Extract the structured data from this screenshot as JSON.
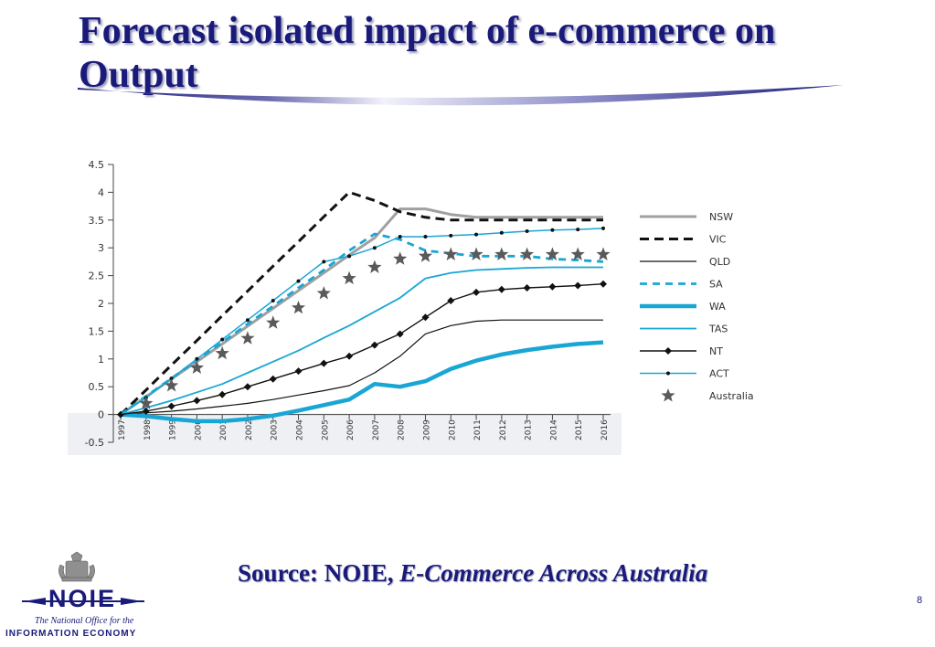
{
  "slide": {
    "title": "Forecast isolated impact of e-commerce on Output",
    "source_prefix": "Source: NOIE, ",
    "source_title": "E-Commerce Across Australia",
    "page_number": "8"
  },
  "logo": {
    "word": "NOIE",
    "tagline": "The National Office for the",
    "tagline2": "INFORMATION ECONOMY",
    "emblem_icon": "coat-of-arms-icon"
  },
  "colors": {
    "title": "#1a1a7a",
    "cyan": "#1aa6d4",
    "gray": "#a0a0a0"
  },
  "chart_data": {
    "type": "line",
    "title": "",
    "xlabel": "",
    "ylabel": "",
    "ylim": [
      -0.5,
      4.5
    ],
    "yticks": [
      "-0.5",
      "0",
      "0.5",
      "1",
      "1.5",
      "2",
      "2.5",
      "3",
      "3.5",
      "4",
      "4.5"
    ],
    "x": [
      "1997",
      "1998",
      "1999",
      "2000",
      "2001",
      "2002",
      "2003",
      "2004",
      "2005",
      "2006",
      "2007",
      "2008",
      "2009",
      "2010",
      "2011",
      "2012",
      "2013",
      "2014",
      "2015",
      "2016"
    ],
    "legend_position": "right",
    "series": [
      {
        "name": "NSW",
        "style": "gray-solid-thick",
        "values": [
          0,
          0.32,
          0.64,
          0.95,
          1.27,
          1.59,
          1.91,
          2.23,
          2.55,
          2.87,
          3.18,
          3.7,
          3.7,
          3.6,
          3.55,
          3.55,
          3.55,
          3.55,
          3.55,
          3.55
        ]
      },
      {
        "name": "VIC",
        "style": "black-dashed",
        "values": [
          0,
          0.44,
          0.89,
          1.33,
          1.78,
          2.22,
          2.67,
          3.11,
          3.56,
          4.0,
          3.85,
          3.65,
          3.55,
          3.5,
          3.5,
          3.5,
          3.5,
          3.5,
          3.5,
          3.5
        ]
      },
      {
        "name": "QLD",
        "style": "black-thin",
        "values": [
          0,
          0.03,
          0.06,
          0.1,
          0.15,
          0.2,
          0.27,
          0.35,
          0.43,
          0.52,
          0.75,
          1.05,
          1.45,
          1.6,
          1.68,
          1.7,
          1.7,
          1.7,
          1.7,
          1.7
        ]
      },
      {
        "name": "SA",
        "style": "cyan-dashed",
        "values": [
          0,
          0.33,
          0.65,
          0.98,
          1.3,
          1.63,
          1.95,
          2.28,
          2.6,
          2.95,
          3.25,
          3.15,
          2.95,
          2.9,
          2.85,
          2.85,
          2.85,
          2.8,
          2.78,
          2.75
        ]
      },
      {
        "name": "WA",
        "style": "cyan-thick",
        "values": [
          0,
          -0.03,
          -0.08,
          -0.12,
          -0.12,
          -0.08,
          -0.02,
          0.07,
          0.17,
          0.27,
          0.55,
          0.5,
          0.6,
          0.82,
          0.97,
          1.08,
          1.16,
          1.22,
          1.27,
          1.3
        ]
      },
      {
        "name": "TAS",
        "style": "cyan-thin",
        "values": [
          0,
          0.12,
          0.25,
          0.4,
          0.55,
          0.75,
          0.95,
          1.15,
          1.38,
          1.6,
          1.85,
          2.1,
          2.45,
          2.55,
          2.6,
          2.62,
          2.64,
          2.65,
          2.65,
          2.65
        ]
      },
      {
        "name": "NT",
        "style": "black-diamond",
        "values": [
          0,
          0.06,
          0.15,
          0.25,
          0.36,
          0.5,
          0.64,
          0.78,
          0.92,
          1.05,
          1.25,
          1.45,
          1.75,
          2.05,
          2.2,
          2.25,
          2.28,
          2.3,
          2.32,
          2.35
        ]
      },
      {
        "name": "ACT",
        "style": "cyan-dot",
        "values": [
          0,
          0.3,
          0.65,
          1.0,
          1.35,
          1.7,
          2.05,
          2.4,
          2.75,
          2.85,
          3.0,
          3.2,
          3.2,
          3.22,
          3.24,
          3.27,
          3.3,
          3.32,
          3.33,
          3.35
        ]
      },
      {
        "name": "Australia",
        "style": "gray-star",
        "values": [
          0,
          0.2,
          0.52,
          0.84,
          1.1,
          1.37,
          1.65,
          1.92,
          2.18,
          2.45,
          2.65,
          2.8,
          2.85,
          2.88,
          2.88,
          2.88,
          2.88,
          2.88,
          2.88,
          2.88
        ]
      }
    ]
  }
}
